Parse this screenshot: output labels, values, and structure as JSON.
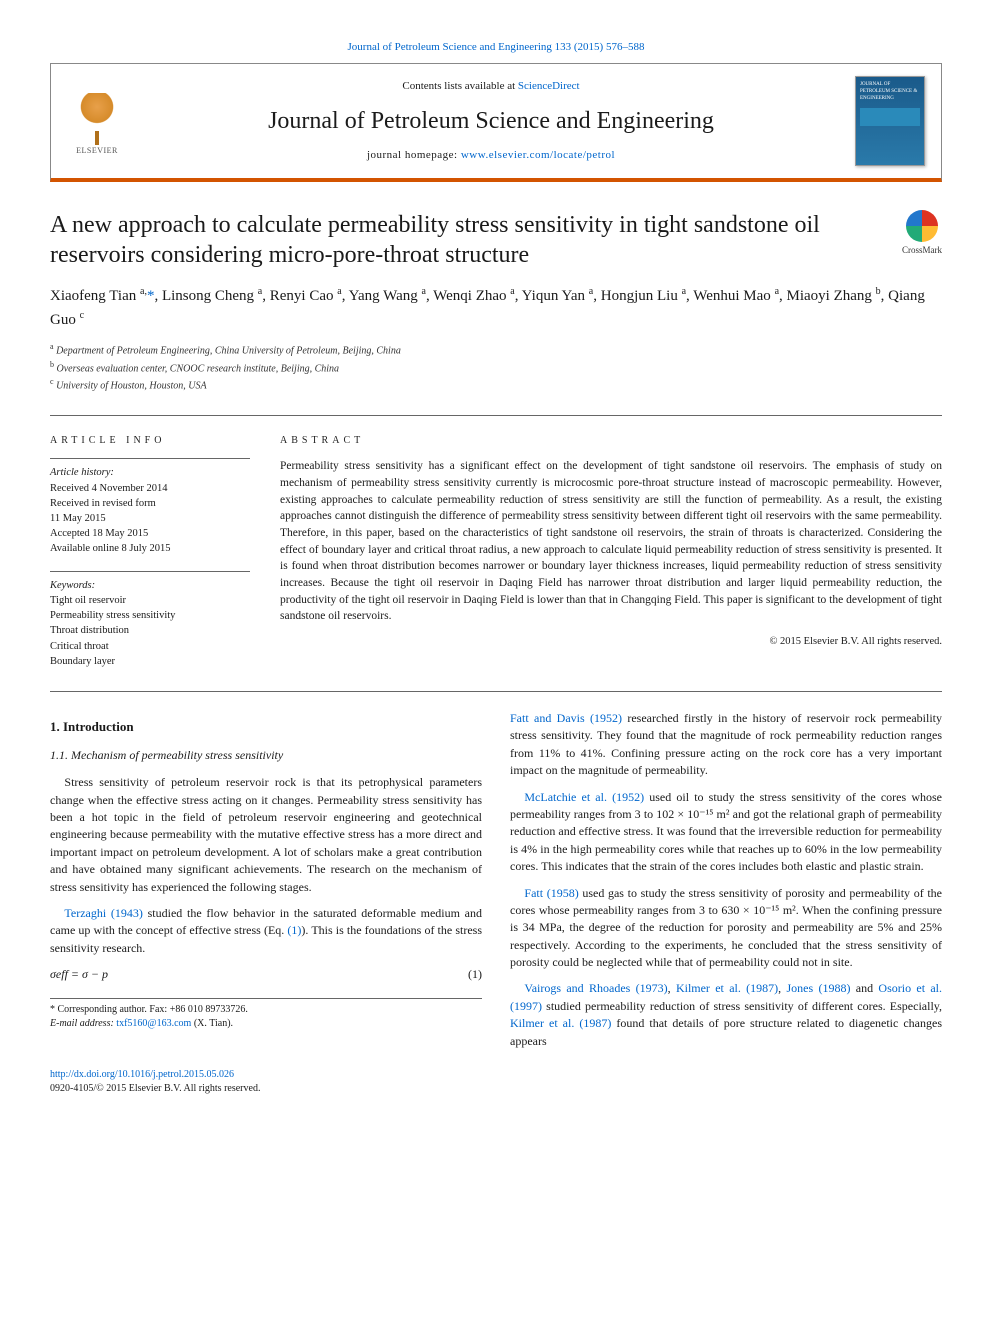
{
  "top_citation": "Journal of Petroleum Science and Engineering 133 (2015) 576–588",
  "header": {
    "contents_prefix": "Contents lists available at ",
    "contents_link": "ScienceDirect",
    "journal_name": "Journal of Petroleum Science and Engineering",
    "homepage_prefix": "journal homepage: ",
    "homepage_url": "www.elsevier.com/locate/petrol",
    "elsevier_label": "ELSEVIER",
    "cover_title": "JOURNAL OF PETROLEUM SCIENCE & ENGINEERING"
  },
  "crossmark_label": "CrossMark",
  "title": "A new approach to calculate permeability stress sensitivity in tight sandstone oil reservoirs considering micro-pore-throat structure",
  "authors_html": "Xiaofeng Tian <sup>a,</sup><a class='corr-star'>*</a>, Linsong Cheng <sup>a</sup>, Renyi Cao <sup>a</sup>, Yang Wang <sup>a</sup>, Wenqi Zhao <sup>a</sup>, Yiqun Yan <sup>a</sup>, Hongjun Liu <sup>a</sup>, Wenhui Mao <sup>a</sup>, Miaoyi Zhang <sup>b</sup>, Qiang Guo <sup>c</sup>",
  "affiliations": [
    {
      "sup": "a",
      "text": "Department of Petroleum Engineering, China University of Petroleum, Beijing, China"
    },
    {
      "sup": "b",
      "text": "Overseas evaluation center, CNOOC research institute, Beijing, China"
    },
    {
      "sup": "c",
      "text": "University of Houston, Houston, USA"
    }
  ],
  "info": {
    "head": "ARTICLE INFO",
    "history_label": "Article history:",
    "history": [
      "Received 4 November 2014",
      "Received in revised form",
      "11 May 2015",
      "Accepted 18 May 2015",
      "Available online 8 July 2015"
    ],
    "keywords_label": "Keywords:",
    "keywords": [
      "Tight oil reservoir",
      "Permeability stress sensitivity",
      "Throat distribution",
      "Critical throat",
      "Boundary layer"
    ]
  },
  "abstract": {
    "head": "ABSTRACT",
    "text": "Permeability stress sensitivity has a significant effect on the development of tight sandstone oil reservoirs. The emphasis of study on mechanism of permeability stress sensitivity currently is microcosmic pore-throat structure instead of macroscopic permeability. However, existing approaches to calculate permeability reduction of stress sensitivity are still the function of permeability. As a result, the existing approaches cannot distinguish the difference of permeability stress sensitivity between different tight oil reservoirs with the same permeability. Therefore, in this paper, based on the characteristics of tight sandstone oil reservoirs, the strain of throats is characterized. Considering the effect of boundary layer and critical throat radius, a new approach to calculate liquid permeability reduction of stress sensitivity is presented. It is found when throat distribution becomes narrower or boundary layer thickness increases, liquid permeability reduction of stress sensitivity increases. Because the tight oil reservoir in Daqing Field has narrower throat distribution and larger liquid permeability reduction, the productivity of the tight oil reservoir in Daqing Field is lower than that in Changqing Field. This paper is significant to the development of tight sandstone oil reservoirs.",
    "copyright": "© 2015 Elsevier B.V. All rights reserved."
  },
  "body": {
    "h_intro": "1.  Introduction",
    "h_mech": "1.1.  Mechanism of permeability stress sensitivity",
    "p1": "Stress sensitivity of petroleum reservoir rock is that its petrophysical parameters change when the effective stress acting on it changes. Permeability stress sensitivity has been a hot topic in the field of petroleum reservoir engineering and geotechnical engineering because permeability with the mutative effective stress has a more direct and important impact on petroleum development. A lot of scholars make a great contribution and have obtained many significant achievements. The research on the mechanism of stress sensitivity has experienced the following stages.",
    "p2a": "Terzaghi (1943)",
    "p2b": " studied the flow behavior in the saturated deformable medium and came up with the concept of effective stress (Eq. ",
    "p2c": "(1)",
    "p2d": "). This is the foundations of the stress sensitivity research.",
    "eq1": "σeff = σ − p",
    "eq1_num": "(1)",
    "p3a": "Fatt and Davis (1952)",
    "p3b": " researched firstly in the history of reservoir rock permeability stress sensitivity. They found that the magnitude of rock permeability reduction ranges from 11% to 41%. Confining pressure acting on the rock core has a very important impact on the magnitude of permeability.",
    "p4a": "McLatchie et al. (1952)",
    "p4b": " used oil to study the stress sensitivity of the cores whose permeability ranges from 3 to 102 × 10⁻¹⁵ m² and got the relational graph of permeability reduction and effective stress. It was found that the irreversible reduction for permeability is 4% in the high permeability cores while that reaches up to 60% in the low permeability cores. This indicates that the strain of the cores includes both elastic and plastic strain.",
    "p5a": "Fatt (1958)",
    "p5b": " used gas to study the stress sensitivity of porosity and permeability of the cores whose permeability ranges from 3 to 630 × 10⁻¹⁵ m². When the confining pressure is 34 MPa, the degree of the reduction for porosity and permeability are 5% and 25% respectively. According to the experiments, he concluded that the stress sensitivity of porosity could be neglected while that of permeability could not in site.",
    "p6a": "Vairogs and Rhoades (1973)",
    "p6b": ", ",
    "p6c": "Kilmer et al. (1987)",
    "p6d": ", ",
    "p6e": "Jones (1988)",
    "p6f": " and ",
    "p6g": "Osorio et al. (1997)",
    "p6h": " studied permeability reduction of stress sensitivity of different cores. Especially, ",
    "p6i": "Kilmer et al. (1987)",
    "p6j": " found that details of pore structure related to diagenetic changes appears"
  },
  "footnotes": {
    "corr": "* Corresponding author. Fax: +86 010 89733726.",
    "email_label": "E-mail address: ",
    "email": "txf5160@163.com",
    "email_suffix": " (X. Tian)."
  },
  "foot": {
    "doi": "http://dx.doi.org/10.1016/j.petrol.2015.05.026",
    "issn_line": "0920-4105/© 2015 Elsevier B.V. All rights reserved."
  },
  "colors": {
    "link": "#0066cc",
    "rule": "#666666",
    "accent": "#d35400"
  }
}
